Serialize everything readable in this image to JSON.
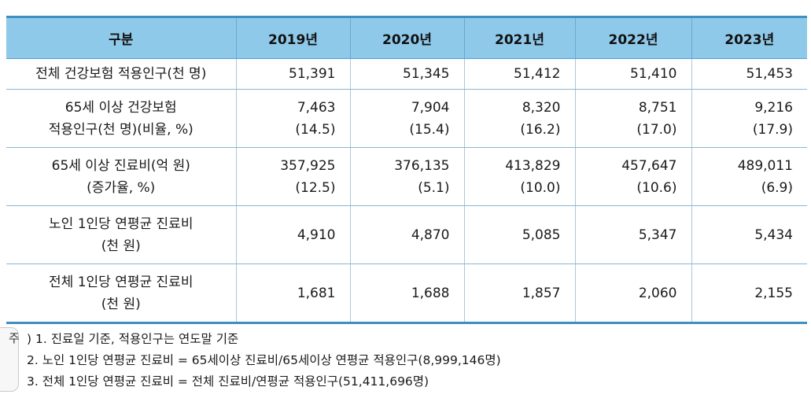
{
  "table": {
    "headers": [
      "구분",
      "2019년",
      "2020년",
      "2021년",
      "2022년",
      "2023년"
    ],
    "rows": [
      {
        "label": [
          "전체 건강보험 적용인구(천 명)"
        ],
        "cells": [
          [
            "51,391"
          ],
          [
            "51,345"
          ],
          [
            "51,412"
          ],
          [
            "51,410"
          ],
          [
            "51,453"
          ]
        ]
      },
      {
        "label": [
          "65세 이상 건강보험",
          "적용인구(천 명)(비율, %)"
        ],
        "cells": [
          [
            "7,463",
            "(14.5)"
          ],
          [
            "7,904",
            "(15.4)"
          ],
          [
            "8,320",
            "(16.2)"
          ],
          [
            "8,751",
            "(17.0)"
          ],
          [
            "9,216",
            "(17.9)"
          ]
        ]
      },
      {
        "label": [
          "65세 이상 진료비(억 원)",
          "(증가율, %)"
        ],
        "cells": [
          [
            "357,925",
            "(12.5)"
          ],
          [
            "376,135",
            "(5.1)"
          ],
          [
            "413,829",
            "(10.0)"
          ],
          [
            "457,647",
            "(10.6)"
          ],
          [
            "489,011",
            "(6.9)"
          ]
        ]
      },
      {
        "label": [
          "노인 1인당 연평균 진료비",
          "(천 원)"
        ],
        "cells": [
          [
            "4,910"
          ],
          [
            "4,870"
          ],
          [
            "5,085"
          ],
          [
            "5,347"
          ],
          [
            "5,434"
          ]
        ]
      },
      {
        "label": [
          "전체 1인당 연평균 진료비",
          "(천 원)"
        ],
        "cells": [
          [
            "1,681"
          ],
          [
            "1,688"
          ],
          [
            "1,857"
          ],
          [
            "2,060"
          ],
          [
            "2,155"
          ]
        ]
      }
    ]
  },
  "notes": {
    "badge": "주",
    "items": [
      ") 1. 진료일 기준, 적용인구는 연도말 기준",
      "2. 노인 1인당 연평균 진료비 = 65세이상 진료비/65세이상 연평균 적용인구(8,999,146명)",
      "3. 전체 1인당 연평균 진료비 = 전체 진료비/연평균 적용인구(51,411,696명)"
    ]
  }
}
